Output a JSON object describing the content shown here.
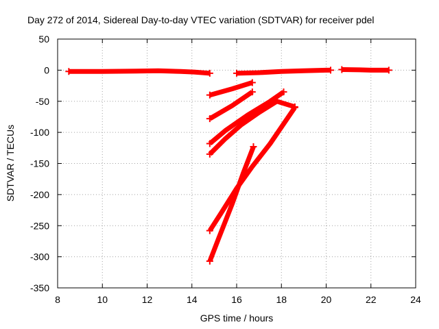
{
  "chart_data": {
    "type": "scatter",
    "title": "Day 272 of 2014, Sidereal Day-to-day VTEC variation (SDTVAR) for receiver pdel",
    "xlabel": "GPS time / hours",
    "ylabel": "SDTVAR / TECUs",
    "xlim": [
      8,
      24
    ],
    "ylim": [
      -350,
      50
    ],
    "xticks": [
      8,
      10,
      12,
      14,
      16,
      18,
      20,
      22,
      24
    ],
    "yticks": [
      50,
      0,
      -50,
      -100,
      -150,
      -200,
      -250,
      -300,
      -350
    ],
    "grid": true,
    "color": "#ff0000",
    "series": [
      {
        "x": [
          8.5,
          10.0,
          11.5,
          12.5,
          13.5,
          14.1,
          14.8
        ],
        "y": [
          -2,
          -2,
          -1.5,
          -1,
          -2,
          -3,
          -5
        ]
      },
      {
        "x": [
          16.0,
          17.0,
          18.0,
          19.0,
          20.0,
          20.2
        ],
        "y": [
          -5,
          -4,
          -2,
          -1,
          0,
          0
        ]
      },
      {
        "x": [
          20.7,
          21.5,
          22.0,
          22.8
        ],
        "y": [
          1,
          0.5,
          0,
          0
        ]
      },
      {
        "x": [
          14.8,
          15.8,
          16.7
        ],
        "y": [
          -40,
          -30,
          -20
        ]
      },
      {
        "x": [
          14.8,
          15.8,
          16.7
        ],
        "y": [
          -78,
          -57,
          -35
        ]
      },
      {
        "x": [
          14.8,
          15.5,
          16.5,
          17.5,
          18.1
        ],
        "y": [
          -118,
          -97,
          -72,
          -50,
          -35
        ]
      },
      {
        "x": [
          14.8,
          15.5,
          16.2,
          17.0,
          17.8,
          18.6
        ],
        "y": [
          -135,
          -110,
          -88,
          -68,
          -50,
          -59
        ]
      },
      {
        "x": [
          14.8,
          15.3,
          16.0,
          16.7,
          17.5,
          18.6
        ],
        "y": [
          -258,
          -230,
          -190,
          -155,
          -118,
          -60
        ]
      },
      {
        "x": [
          14.8,
          15.2,
          15.8,
          16.3,
          16.75
        ],
        "y": [
          -307,
          -270,
          -215,
          -165,
          -123
        ]
      }
    ]
  }
}
